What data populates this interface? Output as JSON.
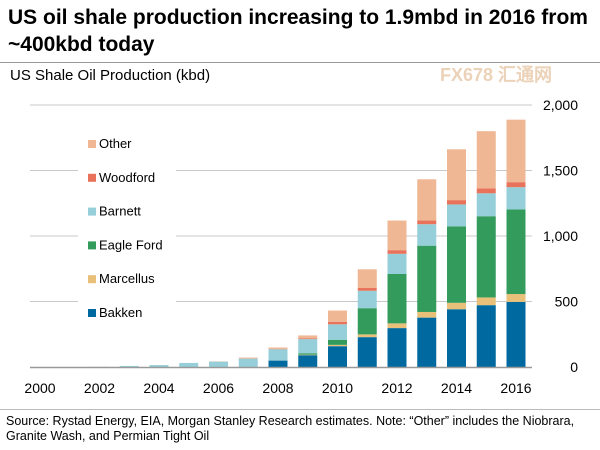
{
  "title": "US oil shale production increasing to 1.9mbd in 2016 from ~400kbd today",
  "source": "Source: Rystad Energy, EIA, Morgan Stanley Research estimates.  Note: “Other” includes the Niobrara, Granite Wash, and Permian Tight Oil",
  "watermark": "FX678 汇通网",
  "chart_data": {
    "type": "bar",
    "stacked": true,
    "title": "US Shale Oil Production (kbd)",
    "xlabel": "",
    "ylabel": "",
    "ylim": [
      0,
      2000
    ],
    "yticks": [
      0,
      500,
      1000,
      1500,
      2000
    ],
    "ytick_labels": [
      "0",
      "500",
      "1,000",
      "1,500",
      "2,000"
    ],
    "y_axis_side": "right",
    "grid": true,
    "legend_placement": "left",
    "categories": [
      "2000",
      "2001",
      "2002",
      "2003",
      "2004",
      "2005",
      "2006",
      "2007",
      "2008",
      "2009",
      "2010",
      "2011",
      "2012",
      "2013",
      "2014",
      "2015",
      "2016"
    ],
    "xtick_labels": [
      "2000",
      "",
      "2002",
      "",
      "2004",
      "",
      "2006",
      "",
      "2008",
      "",
      "2010",
      "",
      "2012",
      "",
      "2014",
      "",
      "2016"
    ],
    "series": [
      {
        "name": "Bakken",
        "color": "#006aa0",
        "values": [
          0,
          0,
          0,
          0,
          0,
          0,
          0,
          0,
          49,
          90,
          159,
          228,
          297,
          377,
          441,
          472,
          497
        ]
      },
      {
        "name": "Marcellus",
        "color": "#e8c07a",
        "values": [
          0,
          0,
          0,
          0,
          0,
          0,
          0,
          0,
          0,
          4,
          10,
          21,
          36,
          43,
          49,
          59,
          60
        ]
      },
      {
        "name": "Eagle Ford",
        "color": "#339c5c",
        "values": [
          0,
          0,
          0,
          0,
          0,
          0,
          0,
          0,
          0,
          11,
          39,
          200,
          377,
          506,
          584,
          620,
          646
        ]
      },
      {
        "name": "Barnett",
        "color": "#96cfd9",
        "values": [
          0,
          0,
          1,
          8,
          15,
          31,
          41,
          64,
          87,
          108,
          118,
          133,
          154,
          164,
          167,
          175,
          170
        ]
      },
      {
        "name": "Woodford",
        "color": "#e8735a",
        "values": [
          0,
          0,
          0,
          0,
          0,
          0,
          0,
          0,
          3,
          5,
          18,
          21,
          28,
          28,
          33,
          38,
          38
        ]
      },
      {
        "name": "Other",
        "color": "#efb794",
        "values": [
          0,
          0,
          0,
          0,
          0,
          0,
          2,
          8,
          10,
          23,
          87,
          143,
          226,
          315,
          388,
          436,
          477
        ]
      }
    ]
  }
}
